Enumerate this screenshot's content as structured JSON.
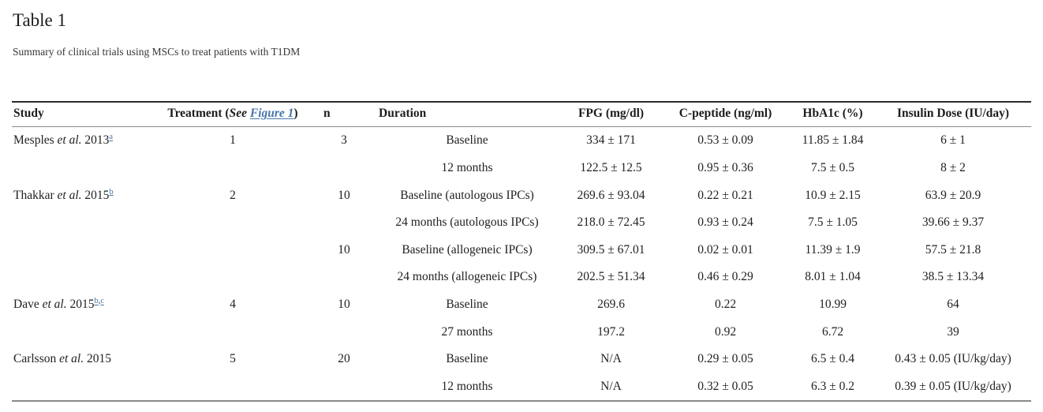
{
  "page": {
    "title": "Table 1",
    "subtitle": "Summary of clinical trials using MSCs to treat patients with T1DM"
  },
  "colors": {
    "text": "#212121",
    "link_blue": "#4576a9",
    "table_top_border": "#2b2b2b",
    "table_bottom_border": "#8a8a8a"
  },
  "table": {
    "header": {
      "study": "Study",
      "treatment_prefix": "Treatment (",
      "treatment_see": "See",
      "treatment_link": "Figure 1",
      "treatment_suffix": ")",
      "n": "n",
      "duration": "Duration",
      "fpg": "FPG (mg/dl)",
      "cpeptide": "C-peptide (ng/ml)",
      "hba1c": "HbA1c (%)",
      "insulin": "Insulin Dose (IU/day)"
    },
    "groups": [
      {
        "study": {
          "name": "Mesples",
          "etal": "et al.",
          "year": "2013",
          "footnotes": [
            "a"
          ]
        },
        "treatment": "1",
        "subgroups": [
          {
            "n": "3",
            "rows": [
              {
                "duration": "Baseline",
                "fpg": "334 ± 171",
                "cpeptide": "0.53 ± 0.09",
                "hba1c": "11.85 ± 1.84",
                "insulin": "6 ± 1"
              },
              {
                "duration": "12 months",
                "fpg": "122.5 ± 12.5",
                "cpeptide": "0.95 ± 0.36",
                "hba1c": "7.5 ± 0.5",
                "insulin": "8 ± 2"
              }
            ]
          }
        ]
      },
      {
        "study": {
          "name": "Thakkar",
          "etal": "et al.",
          "year": "2015",
          "footnotes": [
            "b"
          ]
        },
        "treatment": "2",
        "subgroups": [
          {
            "n": "10",
            "rows": [
              {
                "duration": "Baseline (autologous IPCs)",
                "fpg": "269.6 ± 93.04",
                "cpeptide": "0.22 ± 0.21",
                "hba1c": "10.9 ± 2.15",
                "insulin": "63.9 ± 20.9"
              },
              {
                "duration": "24 months (autologous IPCs)",
                "fpg": "218.0 ± 72.45",
                "cpeptide": "0.93 ± 0.24",
                "hba1c": "7.5 ± 1.05",
                "insulin": "39.66 ± 9.37"
              }
            ]
          },
          {
            "n": "10",
            "rows": [
              {
                "duration": "Baseline (allogeneic IPCs)",
                "fpg": "309.5 ± 67.01",
                "cpeptide": "0.02 ± 0.01",
                "hba1c": "11.39 ± 1.9",
                "insulin": "57.5 ± 21.8"
              },
              {
                "duration": "24 months (allogeneic IPCs)",
                "fpg": "202.5 ± 51.34",
                "cpeptide": "0.46 ± 0.29",
                "hba1c": "8.01 ± 1.04",
                "insulin": "38.5 ± 13.34"
              }
            ]
          }
        ]
      },
      {
        "study": {
          "name": "Dave",
          "etal": "et al.",
          "year": "2015",
          "footnotes": [
            "b",
            "c"
          ]
        },
        "treatment": "4",
        "subgroups": [
          {
            "n": "10",
            "rows": [
              {
                "duration": "Baseline",
                "fpg": "269.6",
                "cpeptide": "0.22",
                "hba1c": "10.99",
                "insulin": "64"
              },
              {
                "duration": "27 months",
                "fpg": "197.2",
                "cpeptide": "0.92",
                "hba1c": "6.72",
                "insulin": "39"
              }
            ]
          }
        ]
      },
      {
        "study": {
          "name": "Carlsson",
          "etal": "et al.",
          "year": "2015",
          "footnotes": []
        },
        "treatment": "5",
        "subgroups": [
          {
            "n": "20",
            "rows": [
              {
                "duration": "Baseline",
                "fpg": "N/A",
                "cpeptide": "0.29 ± 0.05",
                "hba1c": "6.5 ± 0.4",
                "insulin": "0.43 ± 0.05 (IU/kg/day)"
              },
              {
                "duration": "12 months",
                "fpg": "N/A",
                "cpeptide": "0.32 ± 0.05",
                "hba1c": "6.3 ± 0.2",
                "insulin": "0.39 ± 0.05 (IU/kg/day)"
              }
            ]
          }
        ]
      }
    ]
  }
}
